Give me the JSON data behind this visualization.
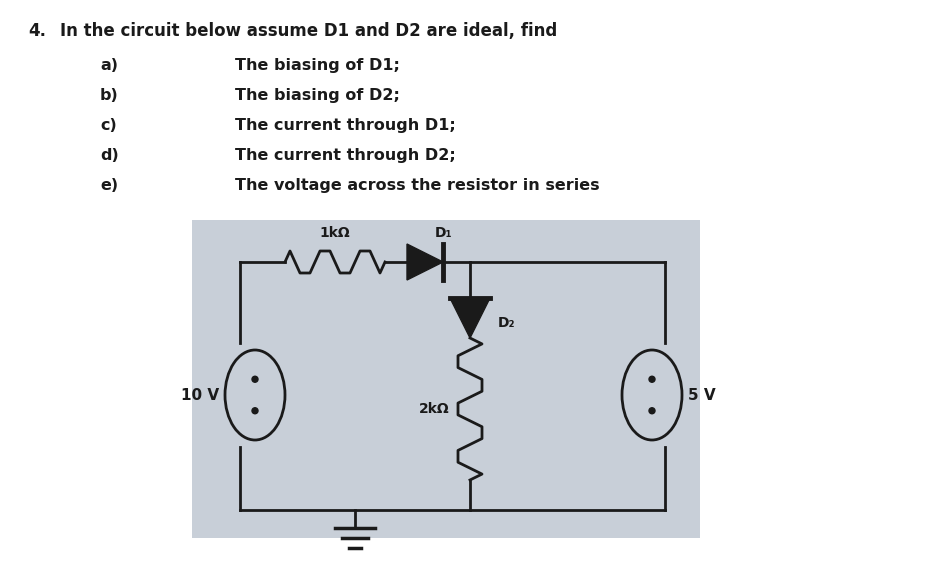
{
  "title_number": "4.",
  "title_text": "In the circuit below assume D1 and D2 are ideal, find",
  "items": [
    [
      "a)",
      "The biasing of D1;"
    ],
    [
      "b)",
      "The biasing of D2;"
    ],
    [
      "c)",
      "The current through D1;"
    ],
    [
      "d)",
      "The current through D2;"
    ],
    [
      "e)",
      "The voltage across the resistor in series"
    ]
  ],
  "circuit_bg": "#c8cfd8",
  "label_1k": "1kΩ",
  "label_D1": "D₁",
  "label_D2": "D₂",
  "label_2k": "2kΩ",
  "label_10V": "10 V",
  "label_5V": "5 V",
  "line_color": "#1a1a1a",
  "text_color": "#1a1a1a",
  "figsize": [
    9.45,
    5.79
  ],
  "dpi": 100
}
